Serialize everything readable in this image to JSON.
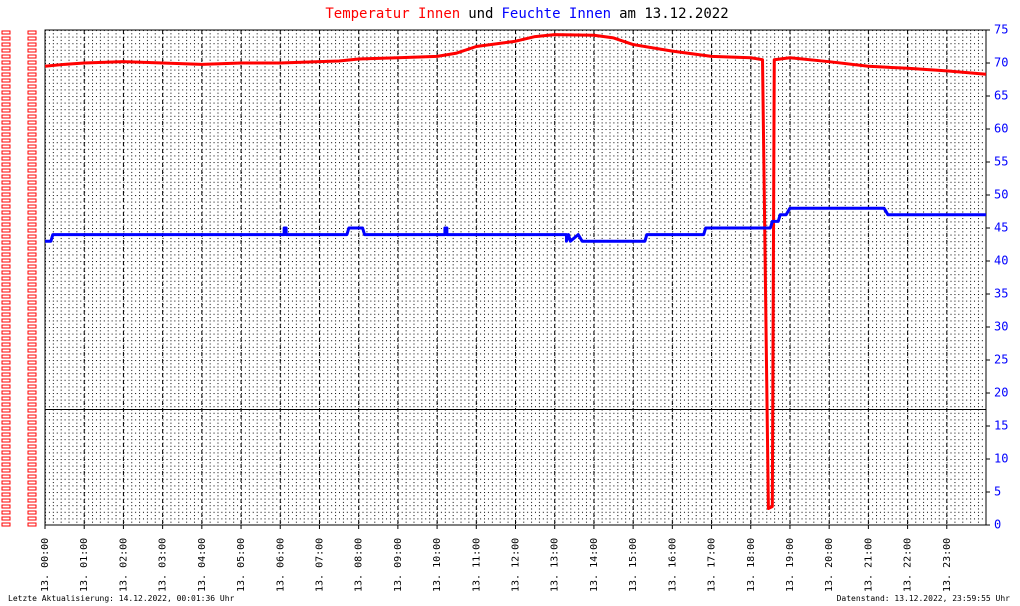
{
  "chart_data": {
    "type": "line",
    "title_parts": [
      {
        "text": "Temperatur Innen",
        "color": "#ff0000"
      },
      {
        "text": "und",
        "color": "#000000"
      },
      {
        "text": "Feuchte Innen",
        "color": "#0000ff"
      },
      {
        "text": "am 13.12.2022",
        "color": "#000000"
      }
    ],
    "footer_left": "Letzte Aktualisierung: 14.12.2022, 00:01:36 Uhr",
    "footer_right": "Datenstand: 13.12.2022, 23:59:55 Uhr",
    "xlim": [
      0,
      24
    ],
    "xticks": [
      {
        "value": 0,
        "label": "13. 00:00"
      },
      {
        "value": 1,
        "label": "13. 01:00"
      },
      {
        "value": 2,
        "label": "13. 02:00"
      },
      {
        "value": 3,
        "label": "13. 03:00"
      },
      {
        "value": 4,
        "label": "13. 04:00"
      },
      {
        "value": 5,
        "label": "13. 05:00"
      },
      {
        "value": 6,
        "label": "13. 06:00"
      },
      {
        "value": 7,
        "label": "13. 07:00"
      },
      {
        "value": 8,
        "label": "13. 08:00"
      },
      {
        "value": 9,
        "label": "13. 09:00"
      },
      {
        "value": 10,
        "label": "13. 10:00"
      },
      {
        "value": 11,
        "label": "13. 11:00"
      },
      {
        "value": 12,
        "label": "13. 12:00"
      },
      {
        "value": 13,
        "label": "13. 13:00"
      },
      {
        "value": 14,
        "label": "13. 14:00"
      },
      {
        "value": 15,
        "label": "13. 15:00"
      },
      {
        "value": 16,
        "label": "13. 16:00"
      },
      {
        "value": 17,
        "label": "13. 17:00"
      },
      {
        "value": 18,
        "label": "13. 18:00"
      },
      {
        "value": 19,
        "label": "13. 19:00"
      },
      {
        "value": 20,
        "label": "13. 20:00"
      },
      {
        "value": 21,
        "label": "13. 21:00"
      },
      {
        "value": 22,
        "label": "13. 22:00"
      },
      {
        "value": 23,
        "label": "13. 23:00"
      }
    ],
    "ylim": [
      0,
      75
    ],
    "yticks": [
      0,
      5,
      10,
      15,
      20,
      25,
      30,
      35,
      40,
      45,
      50,
      55,
      60,
      65,
      70,
      75
    ],
    "reference_line": 17.5,
    "series": [
      {
        "name": "Temperatur Innen",
        "color": "#ff0000",
        "x": [
          0,
          0.5,
          1,
          2,
          3,
          4,
          5,
          6,
          7,
          7.5,
          8,
          9,
          10,
          10.5,
          11,
          12,
          12.5,
          13,
          14,
          14.5,
          15,
          16,
          17,
          18,
          18.3,
          18.45,
          18.55,
          18.6,
          19,
          20,
          21,
          22,
          23,
          24
        ],
        "values": [
          69.5,
          69.8,
          70,
          70.2,
          70,
          69.8,
          70,
          70,
          70.2,
          70.3,
          70.6,
          70.8,
          71,
          71.5,
          72.5,
          73.3,
          74,
          74.3,
          74.2,
          73.8,
          72.8,
          71.8,
          71,
          70.8,
          70.5,
          2.5,
          2.8,
          70.5,
          70.8,
          70.2,
          69.5,
          69.2,
          68.8,
          68.3
        ]
      },
      {
        "name": "Feuchte Innen",
        "color": "#0000ff",
        "x": [
          0,
          0.15,
          0.2,
          6.1,
          6.1,
          6.15,
          6.15,
          7.7,
          7.75,
          8.1,
          8.15,
          10.2,
          10.2,
          10.25,
          10.25,
          13.3,
          13.3,
          13.35,
          13.4,
          13.6,
          13.7,
          15.3,
          15.35,
          16.8,
          16.85,
          18.5,
          18.55,
          18.7,
          18.75,
          18.9,
          19,
          21.4,
          21.5,
          24
        ],
        "values": [
          43,
          43,
          44,
          44,
          45,
          45,
          44,
          44,
          45,
          45,
          44,
          44,
          45,
          45,
          44,
          44,
          43,
          44,
          43,
          44,
          43,
          43,
          44,
          44,
          45,
          45,
          46,
          46,
          47,
          47,
          48,
          48,
          47,
          47
        ]
      }
    ]
  }
}
